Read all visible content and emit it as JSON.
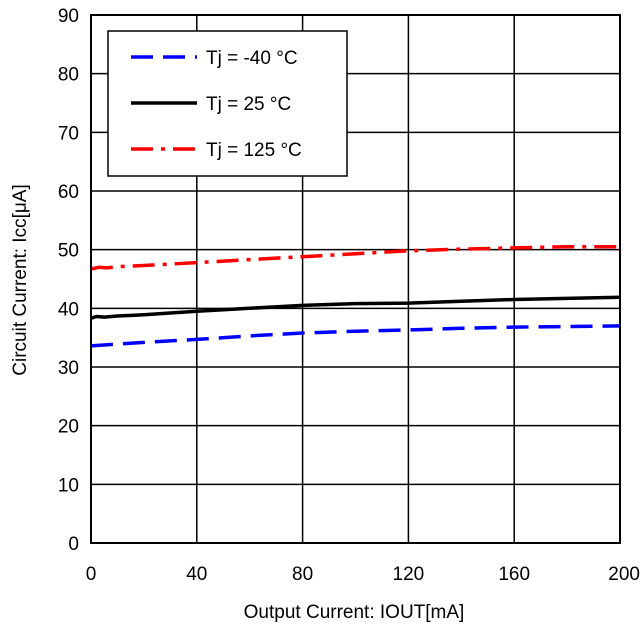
{
  "chart_data": {
    "type": "line",
    "title": "",
    "xlabel": "Output Current: IOUT[mA]",
    "ylabel": "Circuit Current: Icc[μA]",
    "xlim": [
      0,
      200
    ],
    "ylim": [
      0,
      90
    ],
    "x_ticks": [
      "0",
      "40",
      "80",
      "120",
      "160",
      "200"
    ],
    "y_ticks": [
      "0",
      "10",
      "20",
      "30",
      "40",
      "50",
      "60",
      "70",
      "80",
      "90"
    ],
    "grid": true,
    "legend_position": "top-left",
    "series": [
      {
        "name": "Tj = -40 °C",
        "color": "#0000ff",
        "dash": "dashed",
        "points": [
          [
            0,
            33.6
          ],
          [
            10,
            33.9
          ],
          [
            20,
            34.2
          ],
          [
            40,
            34.7
          ],
          [
            60,
            35.3
          ],
          [
            80,
            35.8
          ],
          [
            100,
            36.1
          ],
          [
            120,
            36.3
          ],
          [
            140,
            36.6
          ],
          [
            160,
            36.8
          ],
          [
            180,
            36.9
          ],
          [
            200,
            37.0
          ]
        ]
      },
      {
        "name": "Tj = 25 °C",
        "color": "#000000",
        "dash": "solid",
        "points": [
          [
            0,
            38.3
          ],
          [
            2,
            38.6
          ],
          [
            5,
            38.5
          ],
          [
            10,
            38.7
          ],
          [
            20,
            38.9
          ],
          [
            40,
            39.5
          ],
          [
            60,
            40.0
          ],
          [
            80,
            40.5
          ],
          [
            100,
            40.8
          ],
          [
            120,
            40.9
          ],
          [
            140,
            41.2
          ],
          [
            160,
            41.5
          ],
          [
            180,
            41.7
          ],
          [
            200,
            41.9
          ]
        ]
      },
      {
        "name": "Tj = 125 °C",
        "color": "#ff0000",
        "dash": "dashdot",
        "points": [
          [
            0,
            46.7
          ],
          [
            3,
            47.0
          ],
          [
            6,
            46.9
          ],
          [
            10,
            47.1
          ],
          [
            20,
            47.3
          ],
          [
            40,
            47.8
          ],
          [
            60,
            48.3
          ],
          [
            80,
            48.8
          ],
          [
            100,
            49.3
          ],
          [
            120,
            49.8
          ],
          [
            140,
            50.1
          ],
          [
            160,
            50.3
          ],
          [
            180,
            50.5
          ],
          [
            200,
            50.5
          ]
        ]
      }
    ]
  }
}
